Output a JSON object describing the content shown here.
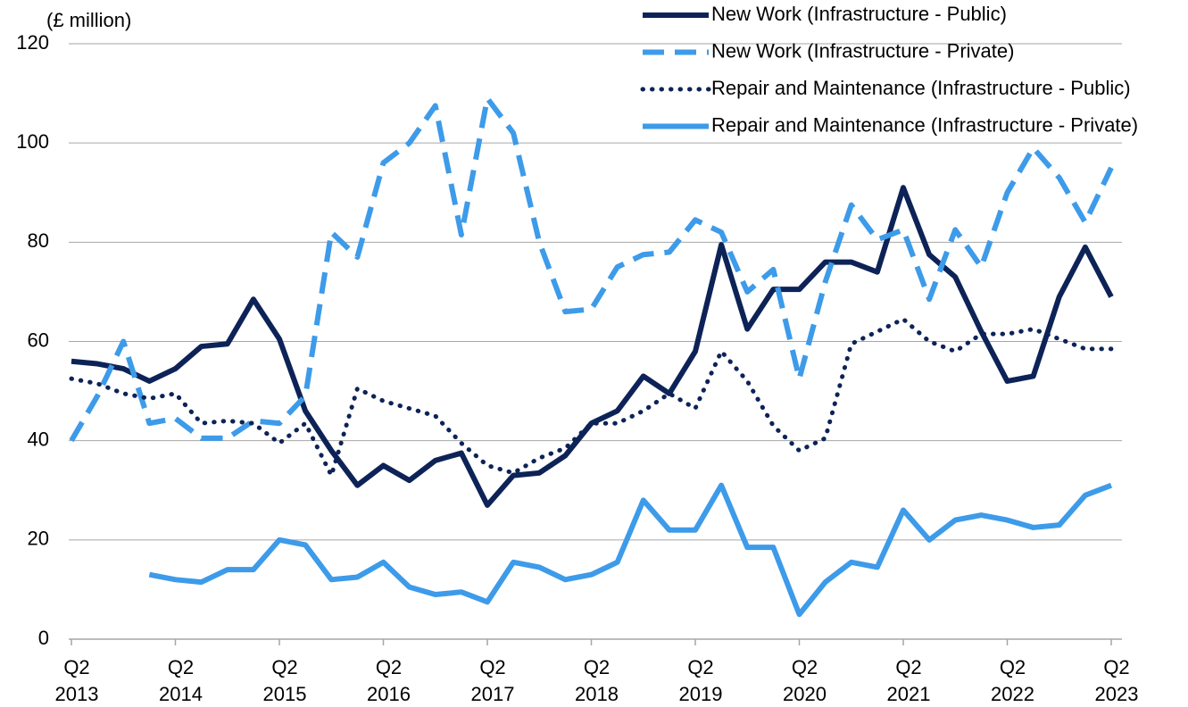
{
  "chart_data": {
    "type": "line",
    "y_label": "(£ million)",
    "categories": [
      "Q2\n2013",
      null,
      null,
      null,
      "Q2\n2014",
      null,
      null,
      null,
      "Q2\n2015",
      null,
      null,
      null,
      "Q2\n2016",
      null,
      null,
      null,
      "Q2\n2017",
      null,
      null,
      null,
      "Q2\n2018",
      null,
      null,
      null,
      "Q2\n2019",
      null,
      null,
      null,
      "Q2\n2020",
      null,
      null,
      null,
      "Q2\n2021",
      null,
      null,
      null,
      "Q2\n2022",
      null,
      null,
      null,
      "Q2\n2023"
    ],
    "series": [
      {
        "name": "New Work (Infrastructure - Public)",
        "color": "#0d2357",
        "style": "solid",
        "values": [
          56,
          55.5,
          54.5,
          52,
          54.5,
          59,
          59.5,
          68.5,
          60.5,
          46,
          38,
          31,
          35,
          32,
          36,
          37.5,
          27,
          33,
          33.5,
          37,
          43.5,
          46,
          53,
          49.5,
          58,
          79.5,
          62.5,
          70.5,
          70.5,
          76,
          76,
          74,
          91,
          77.5,
          73,
          62,
          52,
          53,
          69,
          79,
          69
        ]
      },
      {
        "name": "New Work (Infrastructure - Private)",
        "color": "#3d9be9",
        "style": "dashed",
        "values": [
          40,
          49,
          60,
          43.5,
          44.5,
          40.5,
          40.5,
          44,
          43.5,
          49,
          82,
          77,
          96,
          100,
          107.5,
          81.5,
          109,
          102,
          80,
          66,
          66.5,
          75,
          77.5,
          78,
          84.5,
          82,
          70,
          74.5,
          52.5,
          72,
          87.5,
          80.5,
          82.5,
          68.5,
          82.5,
          75,
          90,
          99,
          93,
          84,
          95
        ]
      },
      {
        "name": "Repair and Maintenance (Infrastructure - Public)",
        "color": "#0d2357",
        "style": "dotted",
        "values": [
          52.5,
          51.5,
          49.5,
          48.5,
          49.5,
          43.5,
          44,
          43.5,
          39.5,
          43.5,
          33,
          50.5,
          48,
          46.5,
          45,
          39.5,
          35,
          33.5,
          36.5,
          38.5,
          43.5,
          43.5,
          46,
          49.5,
          46.5,
          58,
          52,
          43,
          38,
          40.5,
          59.5,
          62,
          64.5,
          60,
          58,
          61.5,
          61.5,
          62.5,
          60.5,
          58.5,
          58.5
        ]
      },
      {
        "name": "Repair and Maintenance (Infrastructure - Private)",
        "color": "#3d9be9",
        "style": "solid",
        "values": [
          null,
          null,
          null,
          13,
          12,
          11.5,
          14,
          14,
          20,
          19,
          12,
          12.5,
          15.5,
          10.5,
          9,
          9.5,
          7.5,
          15.5,
          14.5,
          12,
          13,
          15.5,
          28,
          22,
          22,
          31,
          18.5,
          18.5,
          5,
          11.5,
          15.5,
          14.5,
          26,
          20,
          24,
          25,
          24,
          22.5,
          23,
          29,
          31
        ]
      }
    ],
    "ylim": [
      0,
      120
    ],
    "yticks": [
      0,
      20,
      40,
      60,
      80,
      100,
      120
    ],
    "grid": true,
    "legend": "top-right"
  }
}
